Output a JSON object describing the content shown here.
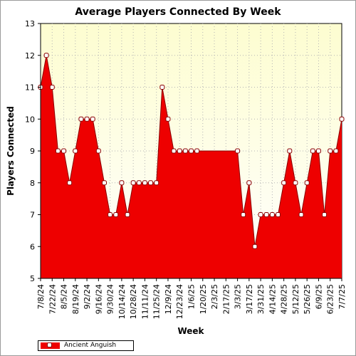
{
  "chart_data": {
    "type": "area",
    "title": "Average Players Connected By Week",
    "xlabel": "Week",
    "ylabel": "Players Connected",
    "ylim": [
      5,
      13
    ],
    "yticks": [
      5,
      6,
      7,
      8,
      9,
      10,
      11,
      12,
      13
    ],
    "grid": true,
    "legend_position": "bottom-left",
    "colors": {
      "fill": "#ee0000",
      "line": "#8b0000",
      "plot_bg_top": "#fdfdd0",
      "plot_bg_bottom": "#ffffff",
      "grid": "#b4b4b4"
    },
    "x_tick_labels": [
      "7/8/24",
      "7/22/24",
      "8/5/24",
      "8/19/24",
      "9/2/24",
      "9/16/24",
      "9/30/24",
      "10/14/24",
      "10/28/24",
      "11/11/24",
      "11/25/24",
      "12/9/24",
      "12/23/24",
      "1/6/25",
      "1/20/25",
      "2/3/25",
      "2/17/25",
      "3/3/25",
      "3/17/25",
      "3/31/25",
      "4/14/25",
      "4/28/25",
      "5/12/25",
      "5/26/25",
      "6/9/25",
      "6/23/25",
      "7/7/25"
    ],
    "series": [
      {
        "name": "Ancient Anguish",
        "x": [
          "7/8/24",
          "7/15/24",
          "7/22/24",
          "7/29/24",
          "8/5/24",
          "8/12/24",
          "8/19/24",
          "8/26/24",
          "9/2/24",
          "9/9/24",
          "9/16/24",
          "9/23/24",
          "9/30/24",
          "10/7/24",
          "10/14/24",
          "10/21/24",
          "10/28/24",
          "11/4/24",
          "11/11/24",
          "11/18/24",
          "11/25/24",
          "12/2/24",
          "12/9/24",
          "12/16/24",
          "12/23/24",
          "12/30/24",
          "1/6/25",
          "1/13/25",
          "3/3/25",
          "3/10/25",
          "3/17/25",
          "3/24/25",
          "3/31/25",
          "4/7/25",
          "4/14/25",
          "4/21/25",
          "4/28/25",
          "5/5/25",
          "5/12/25",
          "5/19/25",
          "5/26/25",
          "6/2/25",
          "6/9/25",
          "6/16/25",
          "6/23/25",
          "6/30/25",
          "7/7/25"
        ],
        "values": [
          11,
          12,
          11,
          9,
          9,
          8,
          9,
          10,
          10,
          10,
          9,
          8,
          7,
          7,
          8,
          7,
          8,
          8,
          8,
          8,
          8,
          11,
          10,
          9,
          9,
          9,
          9,
          9,
          9,
          7,
          8,
          6,
          7,
          7,
          7,
          7,
          8,
          9,
          8,
          7,
          8,
          9,
          9,
          7,
          9,
          9,
          10
        ]
      }
    ]
  }
}
